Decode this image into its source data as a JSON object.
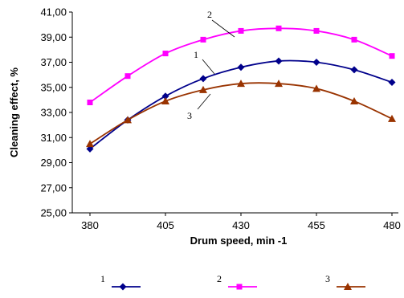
{
  "chart_data": {
    "type": "line",
    "xlabel": "Drum speed, min -1",
    "ylabel": "Cleaning effect, %",
    "x_ticks": [
      "380",
      "405",
      "430",
      "455",
      "480"
    ],
    "y_ticks": [
      "25,00",
      "27,00",
      "29,00",
      "31,00",
      "33,00",
      "35,00",
      "37,00",
      "39,00",
      "41,00"
    ],
    "xlim": [
      375,
      482
    ],
    "ylim": [
      25,
      41
    ],
    "grid": false,
    "x": [
      380,
      392.5,
      405,
      417.5,
      430,
      442.5,
      455,
      467.5,
      480
    ],
    "series": [
      {
        "name": "1",
        "color": "#00008B",
        "marker": "diamond",
        "values": [
          30.1,
          32.4,
          34.3,
          35.7,
          36.6,
          37.1,
          37.0,
          36.4,
          35.4
        ]
      },
      {
        "name": "2",
        "color": "#FF00FF",
        "marker": "square",
        "values": [
          33.8,
          35.9,
          37.7,
          38.8,
          39.5,
          39.7,
          39.5,
          38.8,
          37.5
        ]
      },
      {
        "name": "3",
        "color": "#993300",
        "marker": "triangle",
        "values": [
          30.5,
          32.4,
          33.9,
          34.8,
          35.3,
          35.3,
          34.9,
          33.9,
          32.5
        ]
      }
    ],
    "annotations": [
      "2",
      "1",
      "3"
    ],
    "legend": [
      {
        "label": "1",
        "marker": "diamond",
        "color": "#00008B"
      },
      {
        "label": "2",
        "marker": "square",
        "color": "#FF00FF"
      },
      {
        "label": "3",
        "marker": "triangle",
        "color": "#993300"
      }
    ]
  }
}
